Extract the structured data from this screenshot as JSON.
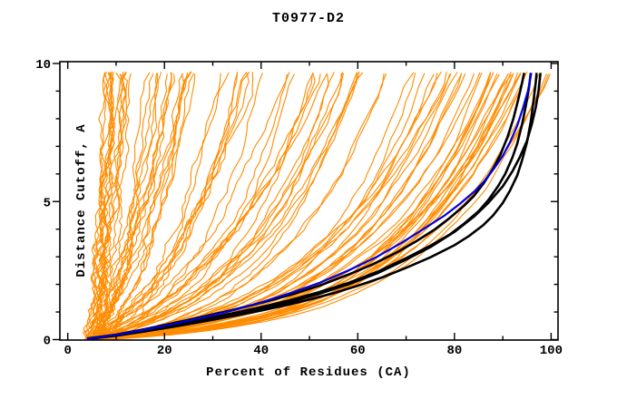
{
  "colors": {
    "background": "#FFFFFF",
    "frame": "#000000",
    "text": "#000000",
    "ensemble_orange": "#FF8C00",
    "highlight_black": "#000000",
    "highlight_blue": "#0000E0"
  },
  "chart_data": {
    "type": "line",
    "title": "T0977-D2",
    "xlabel": "Percent of Residues (CA)",
    "ylabel": "Distance Cutoff, A",
    "xlim": [
      0,
      100
    ],
    "ylim": [
      0,
      10
    ],
    "x_major_ticks": [
      0,
      20,
      40,
      60,
      80,
      100
    ],
    "x_minor_step": 10,
    "y_major_ticks": [
      0,
      5,
      10
    ],
    "y_minor_step": 1,
    "grid": false,
    "legend": "none",
    "curve_top_cutoff": 9.66,
    "series": [
      {
        "name": "highlighted-model-black-1",
        "color": "#000000",
        "width": 2.6,
        "points": [
          [
            4,
            0.02
          ],
          [
            8,
            0.1
          ],
          [
            12,
            0.2
          ],
          [
            16,
            0.3
          ],
          [
            20,
            0.42
          ],
          [
            25,
            0.56
          ],
          [
            30,
            0.72
          ],
          [
            35,
            0.88
          ],
          [
            40,
            1.05
          ],
          [
            45,
            1.24
          ],
          [
            50,
            1.45
          ],
          [
            55,
            1.68
          ],
          [
            60,
            1.95
          ],
          [
            65,
            2.25
          ],
          [
            70,
            2.6
          ],
          [
            75,
            2.98
          ],
          [
            80,
            3.42
          ],
          [
            83,
            3.75
          ],
          [
            86,
            4.15
          ],
          [
            88,
            4.5
          ],
          [
            90,
            4.95
          ],
          [
            91.5,
            5.4
          ],
          [
            93,
            5.95
          ],
          [
            94,
            6.5
          ],
          [
            95,
            7.15
          ],
          [
            95.8,
            7.9
          ],
          [
            96.4,
            8.7
          ],
          [
            96.8,
            9.3
          ],
          [
            97,
            9.66
          ]
        ]
      },
      {
        "name": "highlighted-model-black-2",
        "color": "#000000",
        "width": 2.6,
        "points": [
          [
            4,
            0.03
          ],
          [
            10,
            0.16
          ],
          [
            16,
            0.34
          ],
          [
            22,
            0.52
          ],
          [
            28,
            0.74
          ],
          [
            34,
            0.95
          ],
          [
            40,
            1.18
          ],
          [
            46,
            1.43
          ],
          [
            52,
            1.72
          ],
          [
            58,
            2.05
          ],
          [
            64,
            2.45
          ],
          [
            70,
            2.95
          ],
          [
            75,
            3.4
          ],
          [
            79,
            3.8
          ],
          [
            82,
            4.2
          ],
          [
            85,
            4.65
          ],
          [
            87,
            5.05
          ],
          [
            89,
            5.55
          ],
          [
            90.5,
            6.0
          ],
          [
            92,
            6.6
          ],
          [
            93,
            7.1
          ],
          [
            94,
            7.8
          ],
          [
            94.8,
            8.5
          ],
          [
            95.4,
            9.1
          ],
          [
            95.8,
            9.66
          ]
        ]
      },
      {
        "name": "highlighted-model-black-3",
        "color": "#000000",
        "width": 2.6,
        "points": [
          [
            4,
            0.04
          ],
          [
            10,
            0.18
          ],
          [
            16,
            0.38
          ],
          [
            22,
            0.6
          ],
          [
            28,
            0.83
          ],
          [
            34,
            1.07
          ],
          [
            40,
            1.33
          ],
          [
            46,
            1.62
          ],
          [
            52,
            1.95
          ],
          [
            58,
            2.35
          ],
          [
            63,
            2.72
          ],
          [
            68,
            3.15
          ],
          [
            72,
            3.55
          ],
          [
            76,
            4.0
          ],
          [
            79,
            4.4
          ],
          [
            82,
            4.85
          ],
          [
            84,
            5.2
          ],
          [
            86,
            5.65
          ],
          [
            88,
            6.2
          ],
          [
            89.5,
            6.7
          ],
          [
            91,
            7.35
          ],
          [
            92.2,
            8.0
          ],
          [
            93.2,
            8.7
          ],
          [
            94,
            9.3
          ],
          [
            94.4,
            9.66
          ]
        ]
      },
      {
        "name": "highlighted-model-black-4",
        "color": "#000000",
        "width": 2.6,
        "points": [
          [
            4,
            0.03
          ],
          [
            10,
            0.14
          ],
          [
            16,
            0.3
          ],
          [
            22,
            0.47
          ],
          [
            28,
            0.66
          ],
          [
            34,
            0.86
          ],
          [
            40,
            1.1
          ],
          [
            46,
            1.36
          ],
          [
            52,
            1.66
          ],
          [
            58,
            2.0
          ],
          [
            64,
            2.4
          ],
          [
            70,
            2.9
          ],
          [
            75,
            3.35
          ],
          [
            80,
            3.9
          ],
          [
            84,
            4.45
          ],
          [
            87,
            4.95
          ],
          [
            90,
            5.55
          ],
          [
            92,
            6.1
          ],
          [
            93.5,
            6.6
          ],
          [
            95,
            7.2
          ],
          [
            96,
            7.8
          ],
          [
            96.8,
            8.4
          ],
          [
            97.4,
            9.0
          ],
          [
            97.8,
            9.66
          ]
        ]
      },
      {
        "name": "highlighted-model-blue",
        "color": "#0000E0",
        "width": 2.2,
        "points": [
          [
            4,
            0.03
          ],
          [
            10,
            0.17
          ],
          [
            16,
            0.36
          ],
          [
            22,
            0.57
          ],
          [
            28,
            0.8
          ],
          [
            34,
            1.05
          ],
          [
            40,
            1.35
          ],
          [
            46,
            1.68
          ],
          [
            52,
            2.05
          ],
          [
            58,
            2.5
          ],
          [
            64,
            3.0
          ],
          [
            69,
            3.5
          ],
          [
            74,
            4.05
          ],
          [
            78,
            4.5
          ],
          [
            81,
            4.9
          ],
          [
            84,
            5.35
          ],
          [
            86,
            5.7
          ],
          [
            88,
            6.15
          ],
          [
            90,
            6.65
          ],
          [
            91.5,
            7.15
          ],
          [
            93,
            7.75
          ],
          [
            94.2,
            8.4
          ],
          [
            95.2,
            9.0
          ],
          [
            95.9,
            9.66
          ]
        ]
      }
    ],
    "ensemble": {
      "name": "prediction-ensemble-orange",
      "color": "#FF8C00",
      "width": 1.1,
      "seed": 7,
      "start_percent_range": [
        3.5,
        7.5
      ],
      "buckets": [
        {
          "count": 16,
          "q": [
            7.5,
            15
          ],
          "k": [
            0.8,
            1.5
          ],
          "jit": 1.4
        },
        {
          "count": 12,
          "q": [
            15,
            25
          ],
          "k": [
            1.2,
            2.0
          ],
          "jit": 1.2
        },
        {
          "count": 12,
          "q": [
            25,
            40
          ],
          "k": [
            1.5,
            2.4
          ],
          "jit": 1.1
        },
        {
          "count": 10,
          "q": [
            40,
            55
          ],
          "k": [
            1.8,
            2.8
          ],
          "jit": 1.0
        },
        {
          "count": 10,
          "q": [
            55,
            70
          ],
          "k": [
            2.2,
            3.2
          ],
          "jit": 0.9
        },
        {
          "count": 14,
          "q": [
            70,
            85
          ],
          "k": [
            2.6,
            3.8
          ],
          "jit": 0.8
        },
        {
          "count": 20,
          "q": [
            85,
            97
          ],
          "k": [
            3.0,
            4.2
          ],
          "jit": 0.7
        },
        {
          "count": 4,
          "q": [
            97,
            100.5
          ],
          "k": [
            3.2,
            4.0
          ],
          "jit": 0.6
        }
      ]
    }
  }
}
